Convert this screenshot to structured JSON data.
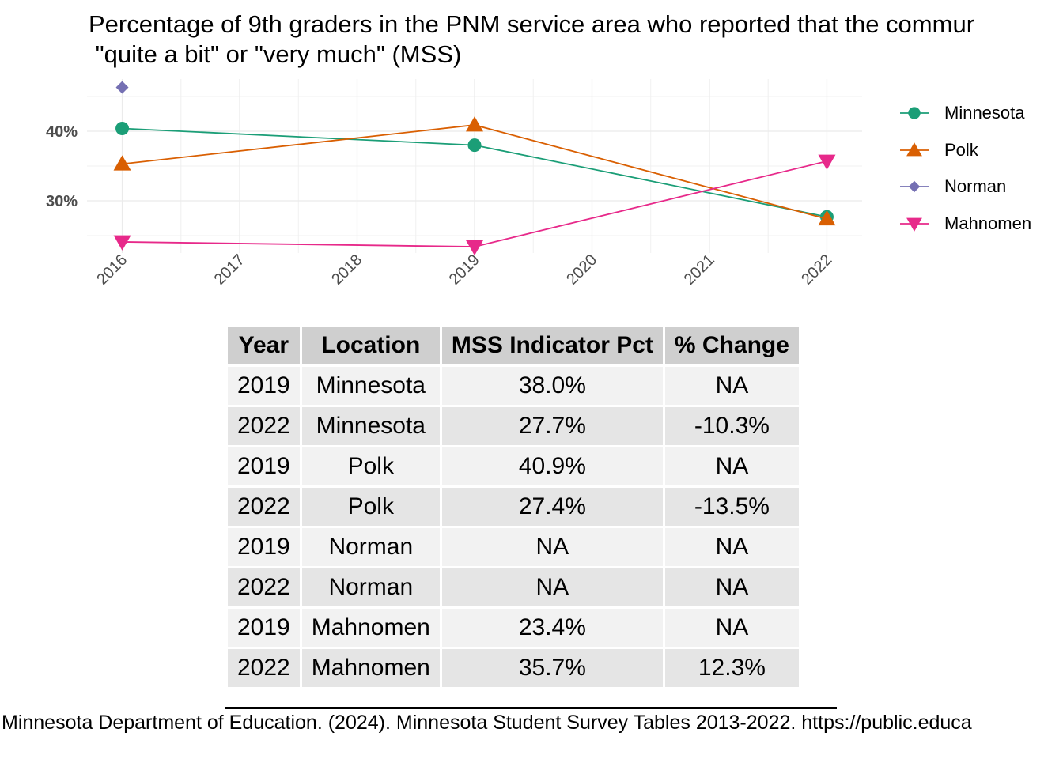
{
  "title": "Percentage of 9th graders in the PNM service area who reported that the commur\n \"quite a bit\" or \"very much\" (MSS)",
  "chart_data": {
    "type": "line",
    "x": [
      2016,
      2017,
      2018,
      2019,
      2020,
      2021,
      2022
    ],
    "x_tick_labels": [
      "2016",
      "2017",
      "2018",
      "2019",
      "2020",
      "2021",
      "2022"
    ],
    "y_ticks": [
      30,
      40
    ],
    "y_tick_labels": [
      "30%",
      "40%"
    ],
    "ylim": [
      22.5,
      47.5
    ],
    "xlim": [
      2015.7,
      2022.3
    ],
    "grid": true,
    "legend_position": "right",
    "series": [
      {
        "name": "Minnesota",
        "color": "#1b9e77",
        "marker": "circle",
        "points": [
          [
            2016,
            40.4
          ],
          [
            2019,
            38.0
          ],
          [
            2022,
            27.7
          ]
        ]
      },
      {
        "name": "Polk",
        "color": "#d95f02",
        "marker": "triangle-up",
        "points": [
          [
            2016,
            35.3
          ],
          [
            2019,
            40.9
          ],
          [
            2022,
            27.4
          ]
        ]
      },
      {
        "name": "Norman",
        "color": "#7570b3",
        "marker": "diamond",
        "points": [
          [
            2016,
            46.3
          ]
        ]
      },
      {
        "name": "Mahnomen",
        "color": "#e7298a",
        "marker": "triangle-down",
        "points": [
          [
            2016,
            24.1
          ],
          [
            2019,
            23.4
          ],
          [
            2022,
            35.7
          ]
        ]
      }
    ]
  },
  "table": {
    "headers": [
      "Year",
      "Location",
      "MSS Indicator Pct",
      "% Change"
    ],
    "rows": [
      [
        "2019",
        "Minnesota",
        "38.0%",
        "NA"
      ],
      [
        "2022",
        "Minnesota",
        "27.7%",
        "-10.3%"
      ],
      [
        "2019",
        "Polk",
        "40.9%",
        "NA"
      ],
      [
        "2022",
        "Polk",
        "27.4%",
        "-13.5%"
      ],
      [
        "2019",
        "Norman",
        "NA",
        "NA"
      ],
      [
        "2022",
        "Norman",
        "NA",
        "NA"
      ],
      [
        "2019",
        "Mahnomen",
        "23.4%",
        "NA"
      ],
      [
        "2022",
        "Mahnomen",
        "35.7%",
        "12.3%"
      ]
    ]
  },
  "caption": "Minnesota Department of Education. (2024). Minnesota Student Survey Tables 2013-2022. https://public.educa"
}
